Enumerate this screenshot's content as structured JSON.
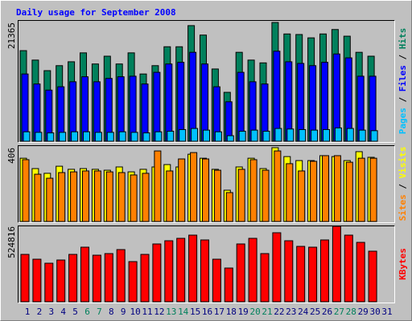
{
  "chart_data": [
    {
      "type": "bar",
      "title": "Daily usage for September 2008",
      "ylim": [
        0,
        21365
      ],
      "yticks": [
        21365
      ],
      "legend_separator": " / ",
      "series": [
        {
          "name": "Hits",
          "color": "#00805C",
          "values": [
            16300,
            14600,
            12700,
            13600,
            14300,
            15900,
            13900,
            15300,
            13900,
            15900,
            12100,
            13600,
            17000,
            17000,
            20800,
            19100,
            13000,
            8800,
            16000,
            14600,
            14100,
            21365,
            19300,
            19200,
            18600,
            19300,
            20100,
            18900,
            16000,
            15300,
            null
          ]
        },
        {
          "name": "Files",
          "color": "#0000FF",
          "values": [
            12100,
            10300,
            9200,
            9800,
            10700,
            11600,
            10700,
            11300,
            11600,
            11700,
            10300,
            12400,
            13900,
            14200,
            16000,
            13900,
            9800,
            7100,
            12400,
            10700,
            10300,
            16200,
            14300,
            14000,
            13600,
            14200,
            15700,
            15000,
            11700,
            11700,
            null
          ]
        },
        {
          "name": "Pages",
          "color": "#00C0FF",
          "values": [
            1700,
            1600,
            1500,
            1600,
            1700,
            1700,
            1600,
            1600,
            1700,
            1600,
            1500,
            1700,
            1800,
            2100,
            2300,
            2000,
            1700,
            1000,
            1800,
            2000,
            1800,
            2300,
            2200,
            2100,
            2000,
            2100,
            2400,
            2300,
            2000,
            1900,
            null
          ]
        }
      ]
    },
    {
      "type": "bar",
      "ylim": [
        0,
        406
      ],
      "yticks": [
        406
      ],
      "legend_separator": " / ",
      "series": [
        {
          "name": "Visits",
          "color": "#FFFF00",
          "values": [
            348,
            291,
            265,
            304,
            287,
            291,
            287,
            282,
            300,
            273,
            287,
            300,
            313,
            300,
            370,
            348,
            287,
            172,
            300,
            348,
            291,
            406,
            357,
            335,
            335,
            362,
            357,
            335,
            384,
            353,
            null
          ]
        },
        {
          "name": "Sites",
          "color": "#FF8000",
          "values": [
            340,
            260,
            238,
            269,
            273,
            278,
            278,
            273,
            269,
            256,
            265,
            388,
            278,
            344,
            379,
            344,
            282,
            159,
            287,
            340,
            282,
            388,
            318,
            278,
            331,
            362,
            362,
            326,
            348,
            348,
            null
          ]
        }
      ]
    },
    {
      "type": "bar",
      "ylim": [
        0,
        524816
      ],
      "yticks": [
        524816
      ],
      "categories": [
        "1",
        "2",
        "3",
        "4",
        "5",
        "6",
        "7",
        "8",
        "9",
        "10",
        "11",
        "12",
        "13",
        "14",
        "15",
        "16",
        "17",
        "18",
        "19",
        "20",
        "21",
        "22",
        "23",
        "24",
        "25",
        "26",
        "27",
        "28",
        "29",
        "30",
        "31"
      ],
      "category_label_colors": [
        "#000080",
        "#000080",
        "#000080",
        "#000080",
        "#000080",
        "#00805C",
        "#00805C",
        "#000080",
        "#000080",
        "#000080",
        "#000080",
        "#000080",
        "#00805C",
        "#00805C",
        "#000080",
        "#000080",
        "#000080",
        "#000080",
        "#000080",
        "#00805C",
        "#00805C",
        "#000080",
        "#000080",
        "#000080",
        "#000080",
        "#000080",
        "#00805C",
        "#00805C",
        "#000080",
        "#000080",
        "#000080"
      ],
      "series": [
        {
          "name": "KBytes",
          "color": "#FF0000",
          "values": [
            329400,
            295900,
            268000,
            290300,
            329400,
            379600,
            323800,
            335000,
            362900,
            279200,
            329400,
            402000,
            424300,
            441100,
            463400,
            429900,
            295900,
            234500,
            402000,
            441100,
            335000,
            480100,
            424300,
            385200,
            379600,
            429900,
            524816,
            463400,
            413100,
            351700,
            null
          ]
        }
      ]
    }
  ]
}
